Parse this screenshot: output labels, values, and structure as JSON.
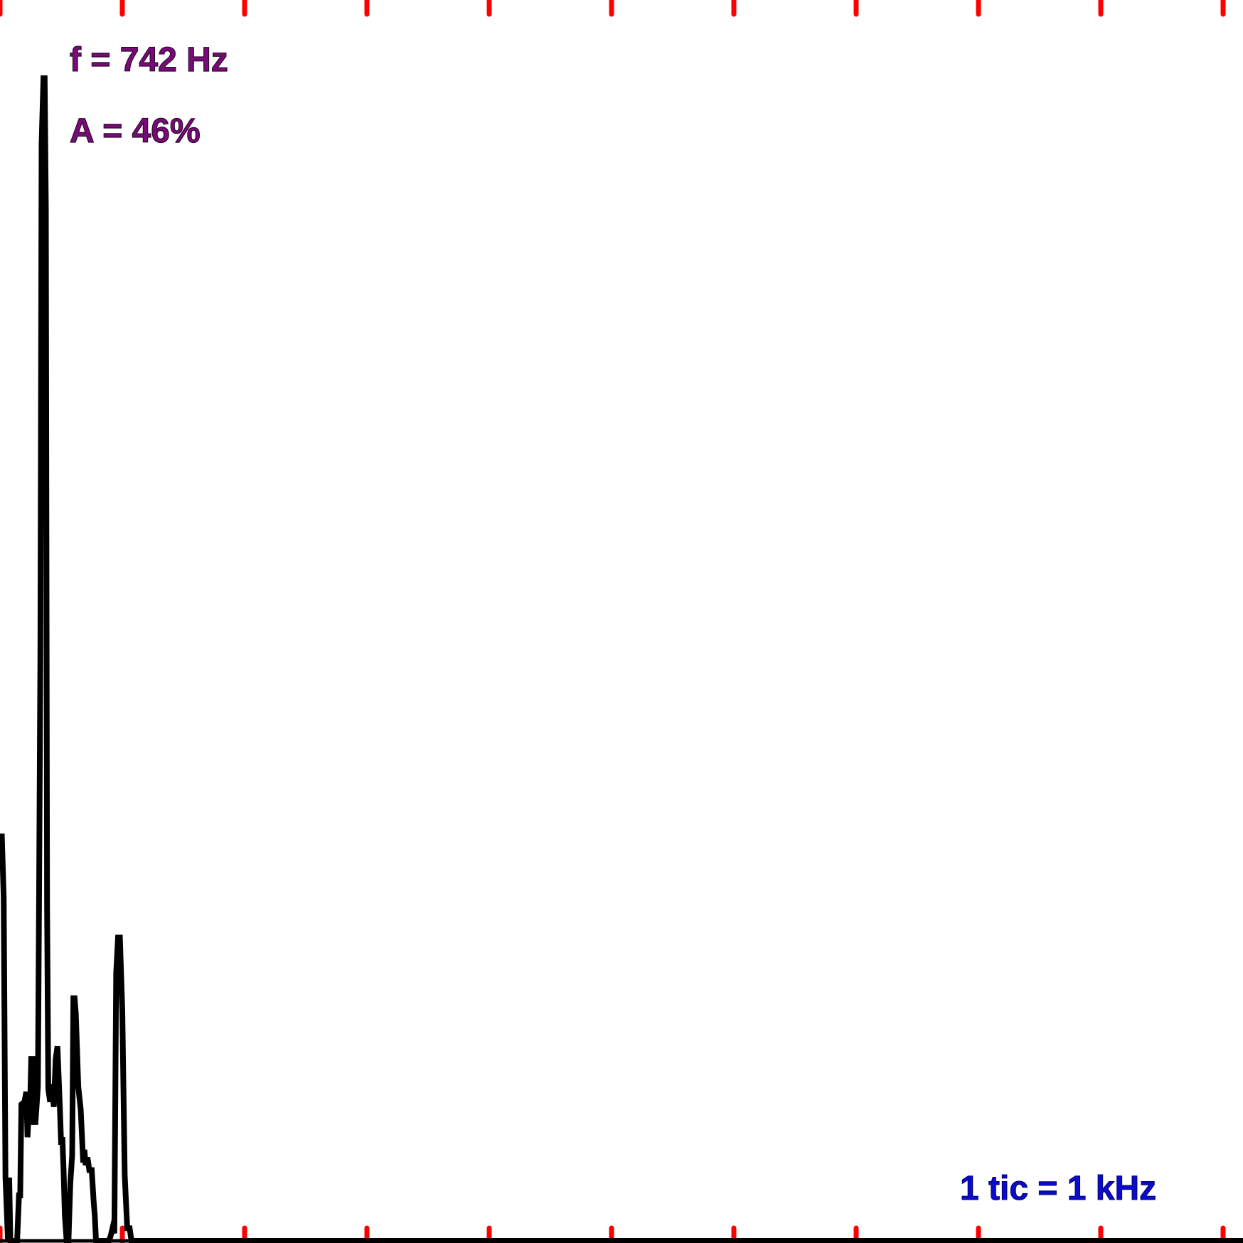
{
  "chart_data": {
    "type": "line",
    "x_unit": "kHz",
    "y_unit": "%",
    "xlim": [
      0,
      10.2
    ],
    "ylim": [
      0,
      50
    ],
    "tick_spacing_khz": 1,
    "grid": false,
    "annotations": {
      "frequency": "f = 742 Hz",
      "amplitude": "A = 46%",
      "scale": "1 tic = 1 kHz"
    },
    "colors": {
      "trace": "#000000",
      "ticks": "#ff0000",
      "readout": "#7a0a7a",
      "scale_note": "#0a0ad0"
    },
    "series": [
      {
        "x": [
          0.0,
          0.015,
          0.03,
          0.045,
          0.065,
          0.075,
          0.085,
          0.1,
          0.14,
          0.155,
          0.165,
          0.175,
          0.2,
          0.215,
          0.225,
          0.235,
          0.245,
          0.255,
          0.265,
          0.275,
          0.29,
          0.31,
          0.32,
          0.33,
          0.34,
          0.355,
          0.365,
          0.375,
          0.385,
          0.395,
          0.41,
          0.425,
          0.44,
          0.455,
          0.47,
          0.48,
          0.49,
          0.5,
          0.51,
          0.52,
          0.53,
          0.545,
          0.56,
          0.575,
          0.59,
          0.6,
          0.61,
          0.62,
          0.64,
          0.66,
          0.68,
          0.69,
          0.7,
          0.715,
          0.73,
          0.74,
          0.75,
          0.765,
          0.775,
          0.785,
          0.8,
          0.815,
          0.83,
          0.845,
          0.86,
          0.875,
          0.89,
          0.905,
          0.92,
          0.935,
          0.95,
          0.965,
          0.98,
          1.0,
          1.02,
          1.04,
          1.06,
          1.075,
          1.085,
          1.095,
          1.105,
          1.115,
          1.125,
          1.135,
          1.145,
          1.155,
          1.165,
          1.175,
          1.185,
          1.2,
          1.25,
          1.3,
          10.2
        ],
        "y": [
          16.0,
          16.0,
          13.6,
          2.5,
          0.0,
          2.5,
          0.0,
          0.0,
          0.0,
          1.8,
          1.8,
          5.4,
          5.5,
          5.9,
          4.1,
          5.1,
          5.1,
          7.2,
          7.2,
          4.7,
          4.7,
          6.1,
          13.9,
          23.2,
          43.4,
          46.0,
          46.0,
          40.8,
          13.3,
          6.0,
          5.5,
          6.2,
          5.3,
          7.2,
          7.7,
          6.4,
          5.2,
          3.8,
          4.1,
          2.8,
          1.0,
          0.0,
          0.0,
          2.3,
          3.4,
          9.6,
          9.6,
          9.0,
          6.1,
          5.2,
          3.1,
          3.6,
          3.0,
          3.3,
          2.8,
          2.8,
          2.8,
          1.6,
          1.0,
          0.0,
          0.0,
          0.0,
          0.0,
          0.0,
          0.0,
          0.0,
          0.0,
          0.2,
          0.5,
          0.3,
          10.6,
          12.0,
          12.0,
          9.1,
          2.6,
          0.5,
          0.5,
          0.0,
          0.0,
          0.0,
          0.0,
          0.0,
          0.0,
          0.0,
          0.0,
          0.0,
          0.0,
          0.0,
          0.0,
          0.0,
          0.0,
          0.0,
          0.0
        ]
      }
    ]
  }
}
